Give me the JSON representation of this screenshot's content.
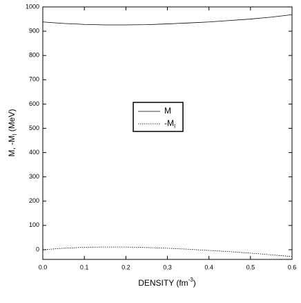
{
  "chart_data": {
    "type": "line",
    "x_label": "DENSITY (fm",
    "x_label_sup": "-3",
    "x_label_end": ")",
    "y_label": "M, -M",
    "y_label_sub": "I",
    "y_label_end": " (MeV)",
    "x": [
      0,
      0.05,
      0.1,
      0.15,
      0.2,
      0.25,
      0.3,
      0.35,
      0.4,
      0.45,
      0.5,
      0.55,
      0.6
    ],
    "series": [
      {
        "name": "M",
        "color": "#000000",
        "dash": "solid",
        "values": [
          938,
          932,
          928,
          926,
          926,
          927,
          930,
          934,
          938,
          944,
          950,
          958,
          968
        ]
      },
      {
        "name": "-M",
        "name_sub": "I",
        "color": "#000000",
        "dash": "dotted",
        "values": [
          0,
          6,
          10,
          11,
          11,
          9,
          6,
          2,
          -3,
          -8,
          -14,
          -21,
          -28
        ]
      }
    ],
    "xlim": [
      0,
      0.6
    ],
    "xticks": [
      {
        "value": 0,
        "label": "0.0"
      },
      0.1,
      0.2,
      0.3,
      0.4,
      0.5,
      0.6
    ],
    "ylim": [
      -40,
      1000
    ],
    "yticks": [
      0,
      100,
      200,
      300,
      400,
      500,
      600,
      700,
      800,
      900,
      1000
    ],
    "grid": false
  }
}
